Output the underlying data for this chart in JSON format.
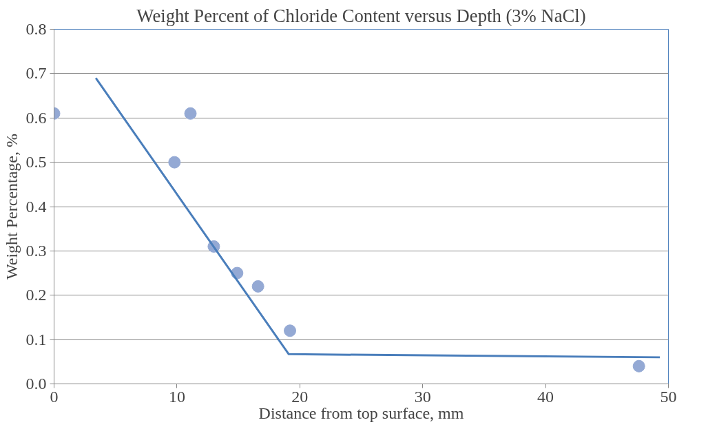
{
  "chart_data": {
    "type": "scatter",
    "title": "Weight Percent of Chloride Content versus Depth (3% NaCl)",
    "xlabel": "Distance from top surface, mm",
    "ylabel": "Weight Percentage, %",
    "series": [
      {
        "marker": "circle",
        "color": "#94a9d4",
        "x": [
          0,
          9.8,
          11.1,
          13.0,
          14.9,
          16.6,
          19.2,
          47.6
        ],
        "values": [
          0.61,
          0.5,
          0.61,
          0.31,
          0.25,
          0.22,
          0.12,
          0.04
        ]
      },
      {
        "type": "line",
        "color": "#4a7ebb",
        "x": [
          3.4,
          19.1,
          49.3
        ],
        "values": [
          0.69,
          0.067,
          0.06
        ]
      }
    ],
    "xlim": [
      0,
      50
    ],
    "xticks": [
      0,
      10,
      20,
      30,
      40,
      50
    ],
    "ylim": [
      0,
      0.8
    ],
    "yticks": [
      {
        "value": 0,
        "label": "0.0"
      },
      0.1,
      0.2,
      0.3,
      0.4,
      0.5,
      0.6,
      0.7,
      0.8
    ],
    "grid": "y"
  }
}
